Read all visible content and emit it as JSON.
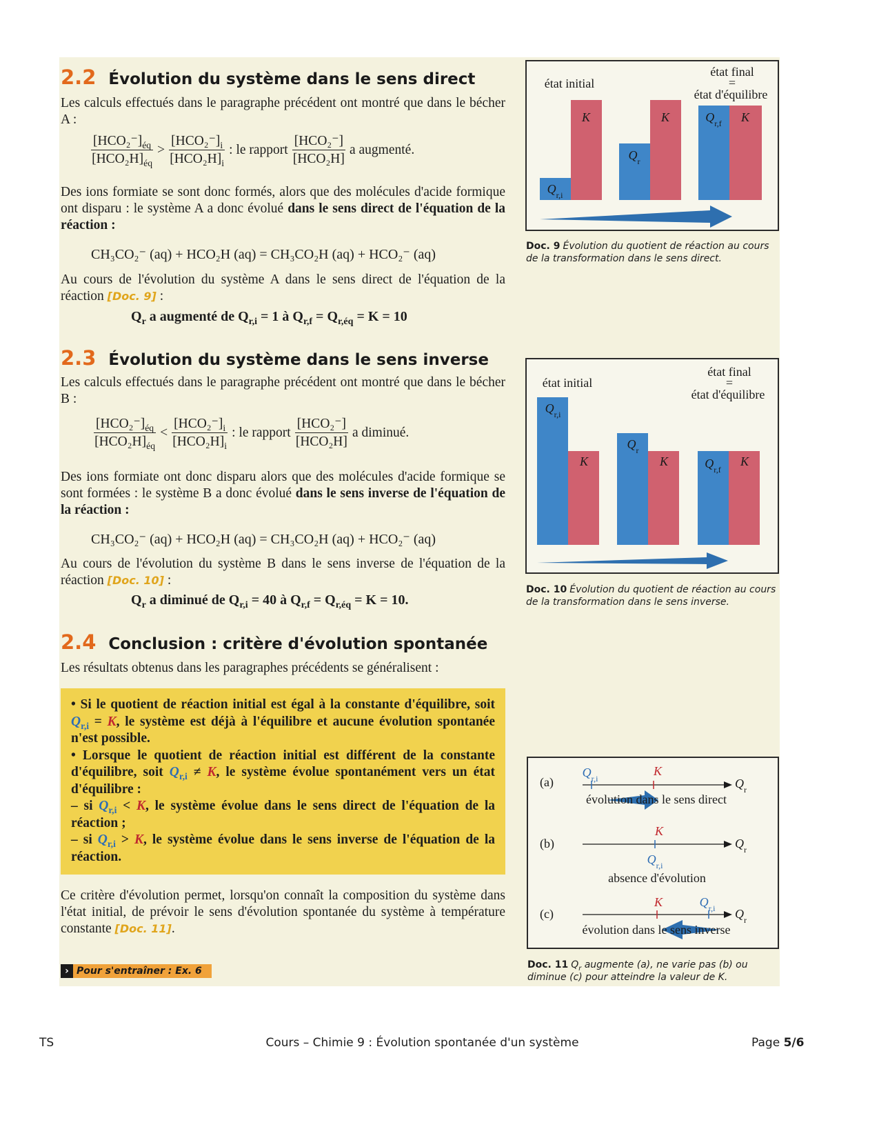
{
  "sec22": {
    "number": "2.2",
    "title": "Évolution du système dans le sens direct",
    "intro": "Les calculs effectués dans le paragraphe précédent ont montré que dans le bécher A :",
    "frac1": {
      "num": [
        "[HCO₂⁻]",
        {
          "sub": "éq"
        }
      ],
      "den": [
        "[HCO₂H]",
        {
          "sub": "éq"
        }
      ]
    },
    "op": ">",
    "frac2": {
      "num": [
        "[HCO₂⁻]",
        {
          "sub": "i"
        }
      ],
      "den": [
        "[HCO₂H]",
        {
          "sub": "i"
        }
      ]
    },
    "text1": ": le rapport",
    "frac3": {
      "num": [
        "[HCO₂⁻]"
      ],
      "den": [
        "[HCO₂H]"
      ]
    },
    "text2": "a augmenté.",
    "para": {
      "normal": "Des ions formiate se sont donc formés, alors que des molécules d'acide formique ont disparu : le système A a donc évolué ",
      "strong": "dans le sens direct de l'équation de la réaction :"
    },
    "equation": "CH₃CO₂⁻ (aq) + HCO₂H (aq) = CH₃CO₂H (aq) + HCO₂⁻ (aq)",
    "para2": {
      "normal": "Au cours de l'évolution du système A dans le sens direct de l'équation de la réaction ",
      "ref": "[Doc. 9]",
      "end": " :"
    },
    "result": [
      "Q",
      {
        "sub": "r"
      },
      " a augmenté de Q",
      {
        "sub": "r,i"
      },
      " = 1 à Q",
      {
        "sub": "r,f"
      },
      " = Q",
      {
        "sub": "r,éq"
      },
      " = K = 10"
    ]
  },
  "sec23": {
    "number": "2.3",
    "title": "Évolution du système dans le sens inverse",
    "intro": "Les calculs effectués dans le paragraphe précédent ont montré que dans le bécher B :",
    "frac1": {
      "num": [
        "[HCO₂⁻]",
        {
          "sub": "éq"
        }
      ],
      "den": [
        "[HCO₂H]",
        {
          "sub": "éq"
        }
      ]
    },
    "op": "<",
    "frac2": {
      "num": [
        "[HCO₂⁻]",
        {
          "sub": "i"
        }
      ],
      "den": [
        "[HCO₂H]",
        {
          "sub": "i"
        }
      ]
    },
    "text1": ": le rapport",
    "frac3": {
      "num": [
        "[HCO₂⁻]"
      ],
      "den": [
        "[HCO₂H]"
      ]
    },
    "text2": "a diminué.",
    "para": {
      "normal": "Des ions formiate ont donc disparu alors que des molécules d'acide formique se sont formées : le système B a donc évolué ",
      "strong": "dans le sens inverse de l'équation de la réaction :"
    },
    "equation": "CH₃CO₂⁻ (aq) + HCO₂H (aq) = CH₃CO₂H (aq) + HCO₂⁻ (aq)",
    "para2": {
      "normal": "Au cours de l'évolution du système B dans le sens inverse de l'équation de la réaction ",
      "ref": "[Doc. 10]",
      "end": " :"
    },
    "result": [
      "Q",
      {
        "sub": "r"
      },
      " a diminué de Q",
      {
        "sub": "r,i"
      },
      " = 40 à Q",
      {
        "sub": "r,f"
      },
      " = Q",
      {
        "sub": "r,éq"
      },
      " = K = 10."
    ]
  },
  "sec24": {
    "number": "2.4",
    "title": "Conclusion : critère d'évolution spontanée",
    "intro": "Les résultats obtenus dans les paragraphes précédents se généralisent :",
    "box": [
      [
        "• Si le quotient de réaction initial est égal à la constante d'équilibre, soit ",
        "Q",
        {
          "sub": "r,i"
        },
        " = ",
        "K",
        ", le système est déjà à l'équilibre et aucune évolution spontanée n'est possible."
      ],
      [
        "• Lorsque le quotient de réaction initial est différent de la constante d'équilibre, soit ",
        "Q",
        {
          "sub": "r,i"
        },
        " ≠ ",
        "K",
        ", le système évolue spontanément vers un état d'équilibre :"
      ],
      [
        "– si ",
        "Q",
        {
          "sub": "r,i"
        },
        " < ",
        "K",
        ", le système évolue dans le sens direct de l'équation de la réaction ;"
      ],
      [
        "– si ",
        "Q",
        {
          "sub": "r,i"
        },
        " > ",
        "K",
        ", le système évolue dans le sens inverse de l'équation de la réaction."
      ]
    ],
    "para": {
      "normal": "Ce critère d'évolution permet, lorsqu'on connaît la composition du système dans l'état initial, de prévoir le sens d'évolution spontanée du système à température constante ",
      "ref": "[Doc. 11]",
      "end": "."
    },
    "exercise": "Pour s'entraîner : Ex. 6"
  },
  "doc9": {
    "state_initial": "état initial",
    "state_final": "état final",
    "equals": "=",
    "state_equilibrium": "état d'équilibre",
    "labels": [
      [
        "Q",
        {
          "sub": "r,i"
        }
      ],
      [
        "K"
      ],
      [
        "Q",
        {
          "sub": "r"
        }
      ],
      [
        "K"
      ],
      [
        "Q",
        {
          "sub": "r,f"
        }
      ],
      [
        "K"
      ]
    ],
    "caption_ref": "Doc. 9",
    "caption": "Évolution du quotient de réaction au cours de la transformation dans le sens direct."
  },
  "doc10": {
    "state_initial": "état initial",
    "state_final": "état final",
    "equals": "=",
    "state_equilibrium": "état d'équilibre",
    "labels": [
      [
        "Q",
        {
          "sub": "r,i"
        }
      ],
      [
        "K"
      ],
      [
        "Q",
        {
          "sub": "r"
        }
      ],
      [
        "K"
      ],
      [
        "Q",
        {
          "sub": "r,f"
        }
      ],
      [
        "K"
      ]
    ],
    "caption_ref": "Doc. 10",
    "caption": "Évolution du quotient de réaction au cours de la transformation dans le sens inverse."
  },
  "doc11": {
    "rows": [
      {
        "tag": "(a)",
        "axis": [
          "Q",
          {
            "sub": "r"
          }
        ],
        "q": [
          "Q",
          {
            "sub": "r,i"
          }
        ],
        "k": "K",
        "text": "évolution dans le sens direct"
      },
      {
        "tag": "(b)",
        "axis": [
          "Q",
          {
            "sub": "r"
          }
        ],
        "q": [
          "Q",
          {
            "sub": "r,i"
          }
        ],
        "k": "K",
        "text": "absence d'évolution"
      },
      {
        "tag": "(c)",
        "axis": [
          "Q",
          {
            "sub": "r"
          }
        ],
        "q": [
          "Q",
          {
            "sub": "r,i"
          }
        ],
        "k": "K",
        "text": "évolution dans le sens inverse"
      }
    ],
    "caption_ref": "Doc. 11",
    "caption": [
      "Q",
      {
        "sub": "r"
      },
      " augmente (a), ne varie pas (b) ou diminue (c) pour atteindre la valeur de K."
    ]
  },
  "footer": {
    "left": "TS",
    "center": "Cours – Chimie 9 : Évolution spontanée d'un système",
    "page_label": "Page ",
    "page_number": "5/6"
  }
}
